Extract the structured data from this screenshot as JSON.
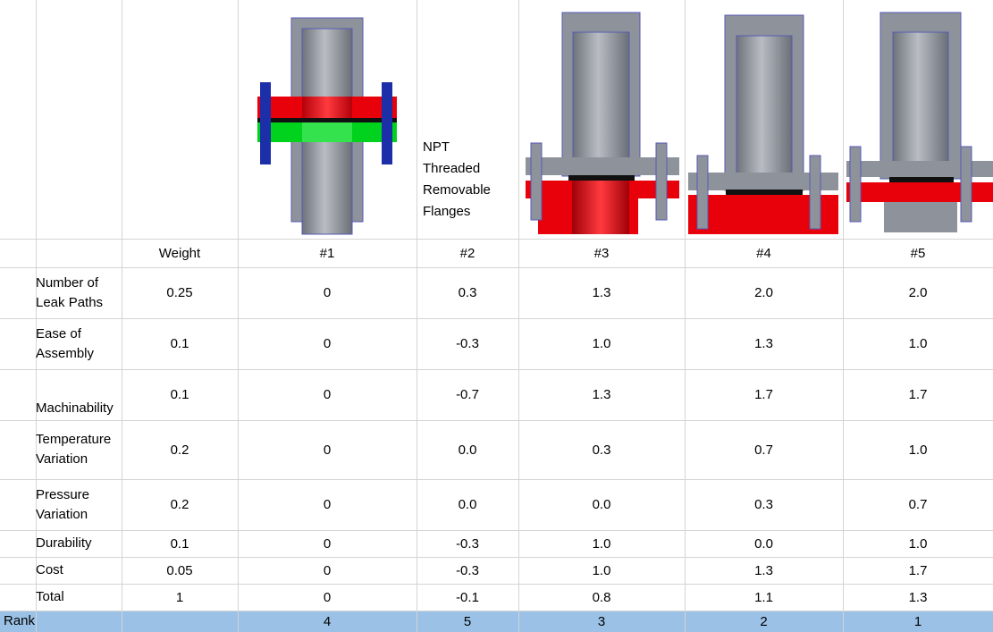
{
  "header": {
    "weight_label": "Weight",
    "design_labels": [
      "#1",
      "#2",
      "#3",
      "#4",
      "#5"
    ],
    "design2_caption": [
      "NPT",
      "Threaded",
      "Removable",
      "Flanges"
    ]
  },
  "rows": [
    {
      "label": "Number of Leak Paths",
      "label_lines": [
        "Number of",
        "Leak Paths"
      ],
      "weight": "0.25",
      "values": [
        "0",
        "0.3",
        "1.3",
        "2.0",
        "2.0"
      ]
    },
    {
      "label": "Ease of Assembly",
      "label_lines": [
        "Ease of",
        "Assembly"
      ],
      "weight": "0.1",
      "values": [
        "0",
        "-0.3",
        "1.0",
        "1.3",
        "1.0"
      ]
    },
    {
      "label": "Machinability",
      "label_lines": [
        "Machinability"
      ],
      "weight": "0.1",
      "values": [
        "0",
        "-0.7",
        "1.3",
        "1.7",
        "1.7"
      ]
    },
    {
      "label": "Temperature Variation",
      "label_lines": [
        "Temperature",
        "Variation"
      ],
      "weight": "0.2",
      "values": [
        "0",
        "0.0",
        "0.3",
        "0.7",
        "1.0"
      ]
    },
    {
      "label": "Pressure Variation",
      "label_lines": [
        "Pressure",
        "Variation"
      ],
      "weight": "0.2",
      "values": [
        "0",
        "0.0",
        "0.0",
        "0.3",
        "0.7"
      ]
    },
    {
      "label": "Durability",
      "label_lines": [
        "Durability"
      ],
      "weight": "0.1",
      "values": [
        "0",
        "-0.3",
        "1.0",
        "0.0",
        "1.0"
      ]
    },
    {
      "label": "Cost",
      "label_lines": [
        "Cost"
      ],
      "weight": "0.05",
      "values": [
        "0",
        "-0.3",
        "1.0",
        "1.3",
        "1.7"
      ]
    },
    {
      "label": "Total",
      "label_lines": [
        "Total"
      ],
      "weight": "1",
      "values": [
        "0",
        "-0.1",
        "0.8",
        "1.1",
        "1.3"
      ]
    }
  ],
  "rank": {
    "label": "Rank",
    "values": [
      "4",
      "5",
      "3",
      "2",
      "1"
    ]
  },
  "colors": {
    "rank_fill": "#9bc2e6",
    "flange_red": "#e8000b",
    "flange_green": "#00d21e",
    "bolt_blue": "#1c2fa8",
    "body_gray": "#8a8f98"
  }
}
